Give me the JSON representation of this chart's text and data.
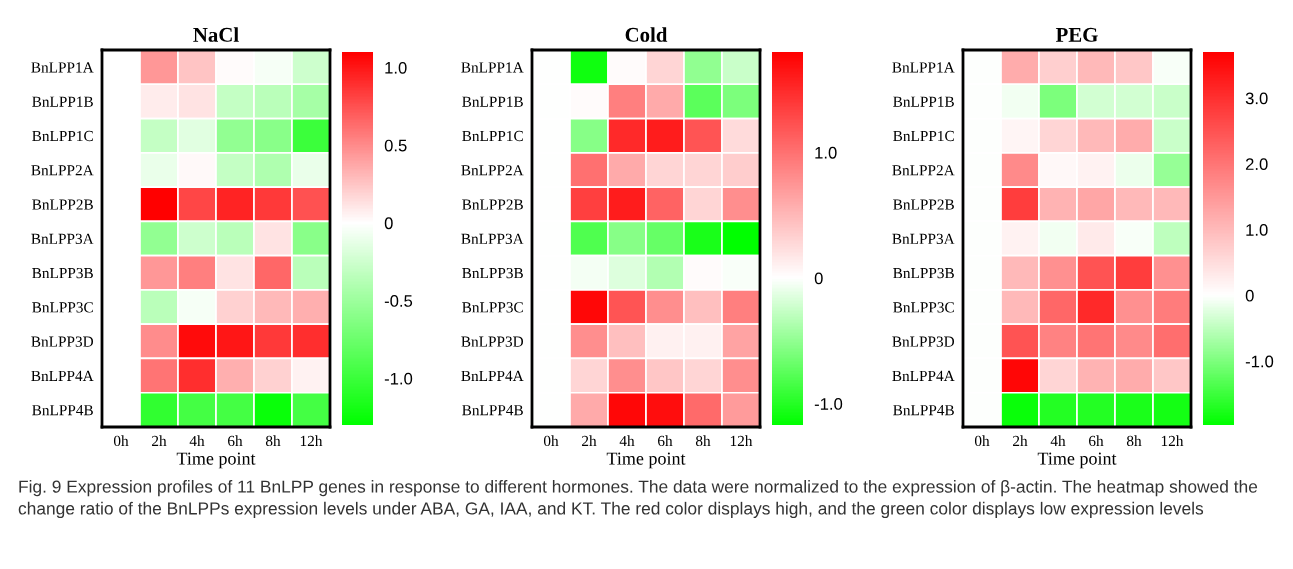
{
  "chart_data": [
    {
      "type": "heatmap",
      "title": "NaCl",
      "xlabel": "Time point",
      "categories": [
        "0h",
        "2h",
        "4h",
        "6h",
        "8h",
        "12h"
      ],
      "y_categories": [
        "BnLPP1A",
        "BnLPP1B",
        "BnLPP1C",
        "BnLPP2A",
        "BnLPP2B",
        "BnLPP3A",
        "BnLPP3B",
        "BnLPP3C",
        "BnLPP3D",
        "BnLPP4A",
        "BnLPP4B"
      ],
      "cells": [
        [
          0,
          0.45,
          0.25,
          0.02,
          -0.05,
          -0.25
        ],
        [
          0,
          0.08,
          0.12,
          -0.3,
          -0.35,
          -0.45
        ],
        [
          0,
          -0.3,
          -0.15,
          -0.55,
          -0.6,
          -1.0
        ],
        [
          0,
          -0.1,
          0.03,
          -0.3,
          -0.4,
          -0.1
        ],
        [
          0,
          1.1,
          0.8,
          0.95,
          0.85,
          0.75
        ],
        [
          0,
          -0.55,
          -0.25,
          -0.35,
          0.12,
          -0.6
        ],
        [
          0,
          0.45,
          0.55,
          0.12,
          0.65,
          -0.35
        ],
        [
          0,
          -0.35,
          -0.05,
          0.2,
          0.3,
          0.35
        ],
        [
          0,
          0.5,
          1.05,
          1.0,
          0.85,
          0.9
        ],
        [
          0,
          0.6,
          0.9,
          0.35,
          0.2,
          0.05
        ],
        [
          0,
          -1.05,
          -0.95,
          -0.95,
          -1.25,
          -0.95
        ]
      ],
      "clim": [
        -1.3,
        1.1
      ],
      "cticks": [
        {
          "value": -1.0,
          "label": "-1.0"
        },
        {
          "value": -0.5,
          "label": "-0.5"
        },
        0,
        {
          "value": 0.5,
          "label": "0.5"
        },
        {
          "value": 1.0,
          "label": "1.0"
        }
      ],
      "annotations": [
        "Fig. 9 Expression profiles of 11 BnLPP genes in response to different hormones. The data were normalized to the expression of β-actin. The heatmap showed the change ratio of the BnLPPs expression levels under ABA, GA, IAA, and KT. The red color displays high, and the green color displays low expression levels"
      ]
    },
    {
      "type": "heatmap",
      "title": "Cold",
      "xlabel": "Time point",
      "categories": [
        "0h",
        "2h",
        "4h",
        "6h",
        "8h",
        "12h"
      ],
      "y_categories": [
        "BnLPP1A",
        "BnLPP1B",
        "BnLPP1C",
        "BnLPP2A",
        "BnLPP2B",
        "BnLPP3A",
        "BnLPP3B",
        "BnLPP3C",
        "BnLPP3D",
        "BnLPP4A",
        "BnLPP4B"
      ],
      "cells": [
        [
          0,
          -1.1,
          0.03,
          0.3,
          -0.5,
          -0.25
        ],
        [
          0,
          0.03,
          0.9,
          0.6,
          -0.75,
          -0.6
        ],
        [
          0,
          -0.55,
          1.5,
          1.6,
          1.2,
          0.25
        ],
        [
          0,
          1.0,
          0.6,
          0.3,
          0.3,
          0.35
        ],
        [
          0,
          1.35,
          1.6,
          1.1,
          0.3,
          0.8
        ],
        [
          0,
          -0.8,
          -0.55,
          -0.7,
          -1.05,
          -1.17
        ],
        [
          0,
          -0.05,
          -0.15,
          -0.35,
          0.03,
          -0.03
        ],
        [
          0,
          1.75,
          1.2,
          0.8,
          0.45,
          0.9
        ],
        [
          0,
          0.8,
          0.45,
          0.1,
          0.1,
          0.65
        ],
        [
          0,
          0.3,
          0.8,
          0.4,
          0.3,
          0.8
        ],
        [
          0,
          0.6,
          1.75,
          1.7,
          1.05,
          0.7
        ]
      ],
      "clim": [
        -1.17,
        1.8
      ],
      "cticks": [
        {
          "value": -1.0,
          "label": "-1.0"
        },
        0,
        {
          "value": 1.0,
          "label": "1.0"
        }
      ]
    },
    {
      "type": "heatmap",
      "title": "PEG",
      "xlabel": "Time point",
      "categories": [
        "0h",
        "2h",
        "4h",
        "6h",
        "8h",
        "12h"
      ],
      "y_categories": [
        "BnLPP1A",
        "BnLPP1B",
        "BnLPP1C",
        "BnLPP2A",
        "BnLPP2B",
        "BnLPP3A",
        "BnLPP3B",
        "BnLPP3C",
        "BnLPP3D",
        "BnLPP4A",
        "BnLPP4B"
      ],
      "cells": [
        [
          0,
          1.2,
          0.7,
          1.0,
          0.8,
          -0.05
        ],
        [
          0,
          -0.1,
          -1.0,
          -0.35,
          -0.35,
          -0.4
        ],
        [
          0,
          0.15,
          0.6,
          1.0,
          1.2,
          -0.4
        ],
        [
          0,
          1.7,
          0.1,
          0.2,
          -0.15,
          -0.8
        ],
        [
          0,
          2.8,
          1.1,
          1.3,
          1.0,
          1.0
        ],
        [
          0,
          0.2,
          -0.1,
          0.3,
          -0.05,
          -0.5
        ],
        [
          0,
          1.0,
          1.6,
          2.5,
          2.8,
          1.6
        ],
        [
          0,
          1.0,
          2.2,
          3.1,
          1.6,
          1.9
        ],
        [
          0,
          2.5,
          1.8,
          2.0,
          1.7,
          2.1
        ],
        [
          0,
          3.6,
          0.6,
          1.1,
          1.2,
          0.8
        ],
        [
          0,
          -1.9,
          -1.7,
          -1.7,
          -1.75,
          -1.8
        ]
      ],
      "clim": [
        -1.97,
        3.7
      ],
      "cticks": [
        {
          "value": -1.0,
          "label": "-1.0"
        },
        0,
        {
          "value": 1.0,
          "label": "1.0"
        },
        {
          "value": 2.0,
          "label": "2.0"
        },
        {
          "value": 3.0,
          "label": "3.0"
        }
      ]
    }
  ]
}
